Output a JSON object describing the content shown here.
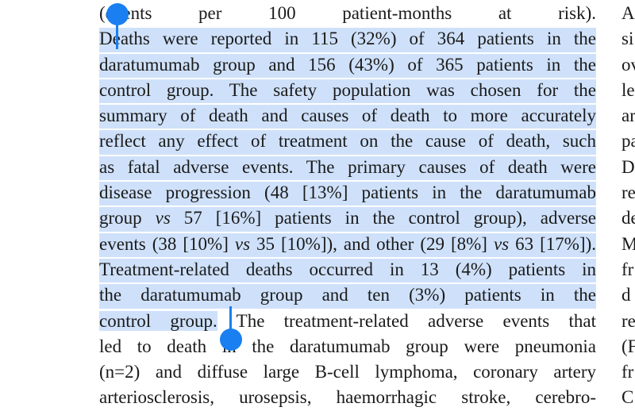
{
  "left_column": {
    "lines": [
      {
        "selected": false,
        "spans": [
          {
            "text": "(events per 100 patient-months at risk)."
          }
        ]
      },
      {
        "selected": true,
        "spans": [
          {
            "text": "Deaths were reported in 115 (32%) of 364 patients in the"
          }
        ]
      },
      {
        "selected": true,
        "spans": [
          {
            "text": "daratumumab group and 156 (43%) of 365 patients in the"
          }
        ]
      },
      {
        "selected": true,
        "spans": [
          {
            "text": "control group. The safety population was chosen for the"
          }
        ]
      },
      {
        "selected": true,
        "spans": [
          {
            "text": "summary of death and causes of death to more accurately"
          }
        ]
      },
      {
        "selected": true,
        "spans": [
          {
            "text": "reflect any effect of treatment on the cause of death, such"
          }
        ]
      },
      {
        "selected": true,
        "spans": [
          {
            "text": "as fatal adverse events. The primary causes of death were"
          }
        ]
      },
      {
        "selected": true,
        "spans": [
          {
            "text": "disease progression (48 [13%] patients in the daratumumab"
          }
        ]
      },
      {
        "selected": true,
        "spans": [
          {
            "text": "group "
          },
          {
            "text": "vs",
            "italic": true
          },
          {
            "text": " 57 [16%] patients in the control group), adverse"
          }
        ]
      },
      {
        "selected": true,
        "spans": [
          {
            "text": "events (38 [10%] "
          },
          {
            "text": "vs",
            "italic": true
          },
          {
            "text": " 35 [10%]), and other (29 [8%] "
          },
          {
            "text": "vs",
            "italic": true
          },
          {
            "text": " 63 [17%])."
          }
        ]
      },
      {
        "selected": true,
        "spans": [
          {
            "text": "Treatment-related deaths occurred in 13 (4%) patients in"
          }
        ]
      },
      {
        "selected": true,
        "spans": [
          {
            "text": "the daratumumab group and ten (3%) patients in the"
          }
        ]
      },
      {
        "selected": false,
        "spans": [
          {
            "text": "control group.",
            "selected": true
          },
          {
            "text": " The treatment-related adverse events that"
          }
        ]
      },
      {
        "selected": false,
        "spans": [
          {
            "text": "led to death in the daratumumab group were pneumonia"
          }
        ]
      },
      {
        "selected": false,
        "spans": [
          {
            "text": "(n=2) and diffuse large B-cell lymphoma, coronary artery"
          }
        ]
      },
      {
        "selected": false,
        "spans": [
          {
            "text": "arteriosclerosis, urosepsis, haemorrhagic stroke, cerebro-"
          }
        ]
      }
    ]
  },
  "right_column": {
    "lines": [
      "A",
      "si",
      "ov",
      "le",
      "ar",
      "pa",
      "D",
      "re",
      "de",
      "M",
      "fr",
      "d",
      "re",
      "(F",
      "fr",
      "C"
    ]
  }
}
